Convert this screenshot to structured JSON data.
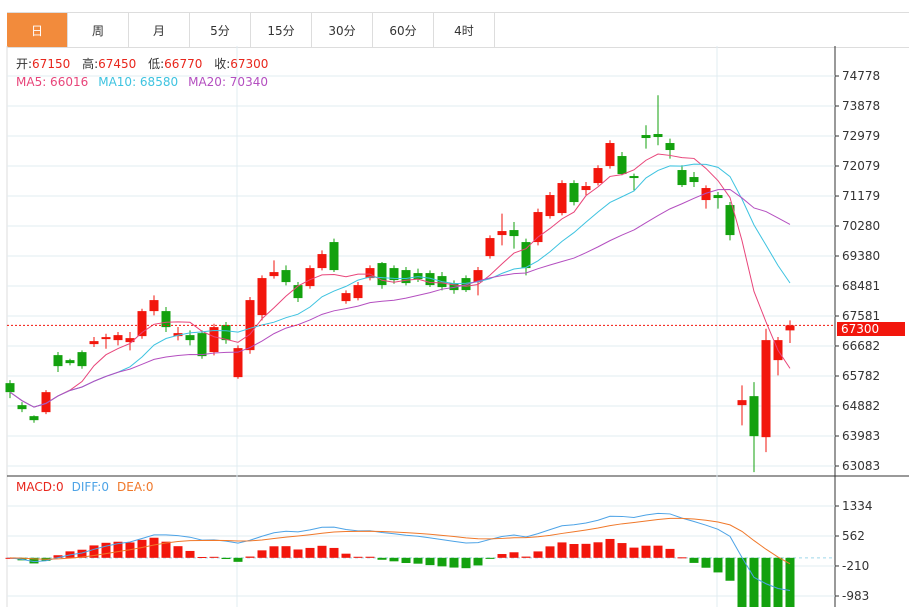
{
  "tabs": [
    "日",
    "周",
    "月",
    "5分",
    "15分",
    "30分",
    "60分",
    "4时"
  ],
  "active_tab": 0,
  "ohlc": {
    "open_label": "开:",
    "open": "67150",
    "high_label": "高:",
    "high": "67450",
    "low_label": "低:",
    "low": "66770",
    "close_label": "收:",
    "close": "67300"
  },
  "ma": {
    "ma5": "MA5: 66016",
    "ma10": "MA10: 68580",
    "ma20": "MA20: 70340"
  },
  "macd_legend": {
    "macd": "MACD:0",
    "diff": "DIFF:0",
    "dea": "DEA:0"
  },
  "current_price": "67300",
  "colors": {
    "up": "#f2160c",
    "down": "#13a10e",
    "ma5": "#e8457a",
    "ma10": "#3ec3e0",
    "ma20": "#b44fc0",
    "diff": "#4da3e6",
    "dea": "#f0782a",
    "accent": "#f28b3c"
  },
  "chart_data": {
    "type": "candlestick",
    "price_axis": {
      "ticks": [
        74778,
        73878,
        72979,
        72079,
        71179,
        70280,
        69380,
        68481,
        67581,
        66682,
        65782,
        64882,
        63983,
        63083
      ]
    },
    "macd_axis": {
      "ticks": [
        1334,
        562,
        -210,
        -983
      ]
    },
    "candles": [
      [
        65568,
        65298,
        65658,
        65118
      ],
      [
        64908,
        64788,
        65000,
        64700
      ],
      [
        64578,
        64458,
        64600,
        64380
      ],
      [
        64698,
        65298,
        65360,
        64640
      ],
      [
        66408,
        66078,
        66500,
        65900
      ],
      [
        66258,
        66168,
        66300,
        66100
      ],
      [
        66498,
        66078,
        66550,
        66000
      ],
      [
        66738,
        66828,
        66950,
        66650
      ],
      [
        66888,
        66948,
        67050,
        66600
      ],
      [
        66858,
        67008,
        67100,
        66700
      ],
      [
        66798,
        66918,
        67100,
        66550
      ],
      [
        66978,
        67728,
        67800,
        66900
      ],
      [
        67728,
        68058,
        68200,
        67600
      ],
      [
        67728,
        67248,
        67850,
        67100
      ],
      [
        66978,
        67068,
        67250,
        66850
      ],
      [
        67008,
        66858,
        67150,
        66700
      ],
      [
        67068,
        66378,
        67150,
        66300
      ],
      [
        66498,
        67248,
        67350,
        66400
      ],
      [
        67308,
        66858,
        67400,
        66750
      ],
      [
        65748,
        66618,
        66700,
        65700
      ],
      [
        66558,
        68058,
        68150,
        66450
      ],
      [
        67608,
        68718,
        68800,
        67450
      ],
      [
        68778,
        68898,
        69250,
        68700
      ],
      [
        68958,
        68598,
        69100,
        68500
      ],
      [
        68508,
        68118,
        68600,
        68000
      ],
      [
        68478,
        69018,
        69100,
        68400
      ],
      [
        69018,
        69438,
        69550,
        68950
      ],
      [
        69798,
        68958,
        69900,
        68900
      ],
      [
        68028,
        68268,
        68350,
        67950
      ],
      [
        68118,
        68508,
        68600,
        68050
      ],
      [
        68718,
        69018,
        69100,
        68650
      ],
      [
        69168,
        68508,
        69200,
        68400
      ],
      [
        69018,
        68658,
        69100,
        68550
      ],
      [
        68958,
        68568,
        69050,
        68500
      ],
      [
        68868,
        68688,
        69000,
        68600
      ],
      [
        68868,
        68508,
        68950,
        68450
      ],
      [
        68778,
        68448,
        68900,
        68350
      ],
      [
        68568,
        68358,
        68650,
        68250
      ],
      [
        68718,
        68358,
        68800,
        68300
      ],
      [
        68598,
        68958,
        69050,
        68200
      ],
      [
        69378,
        69918,
        70000,
        69300
      ],
      [
        70008,
        70128,
        70650,
        69700
      ],
      [
        70158,
        69978,
        70400,
        69600
      ],
      [
        69798,
        69018,
        69900,
        68800
      ],
      [
        69798,
        70698,
        70800,
        69700
      ],
      [
        70578,
        71208,
        71300,
        70500
      ],
      [
        70668,
        71568,
        71650,
        70600
      ],
      [
        71568,
        70998,
        71650,
        70900
      ],
      [
        71358,
        71478,
        71600,
        71200
      ],
      [
        71568,
        72018,
        72100,
        71500
      ],
      [
        72078,
        72768,
        72850,
        72000
      ],
      [
        72378,
        71838,
        72500,
        71800
      ],
      [
        71778,
        71718,
        71850,
        71350
      ],
      [
        73008,
        72918,
        73300,
        72600
      ],
      [
        73038,
        72948,
        74200,
        72700
      ],
      [
        72768,
        72558,
        72900,
        72300
      ],
      [
        71958,
        71508,
        72100,
        71450
      ],
      [
        71748,
        71598,
        71900,
        71450
      ],
      [
        71058,
        71418,
        71500,
        70800
      ],
      [
        71208,
        71118,
        71300,
        70800
      ],
      [
        70908,
        70008,
        71000,
        69850
      ],
      [
        64908,
        65058,
        65500,
        64300
      ],
      [
        65178,
        63978,
        65600,
        62900
      ],
      [
        63948,
        66858,
        67200,
        63500
      ],
      [
        66258,
        66858,
        66950,
        65800
      ],
      [
        67150,
        67300,
        67450,
        66770
      ]
    ]
  }
}
